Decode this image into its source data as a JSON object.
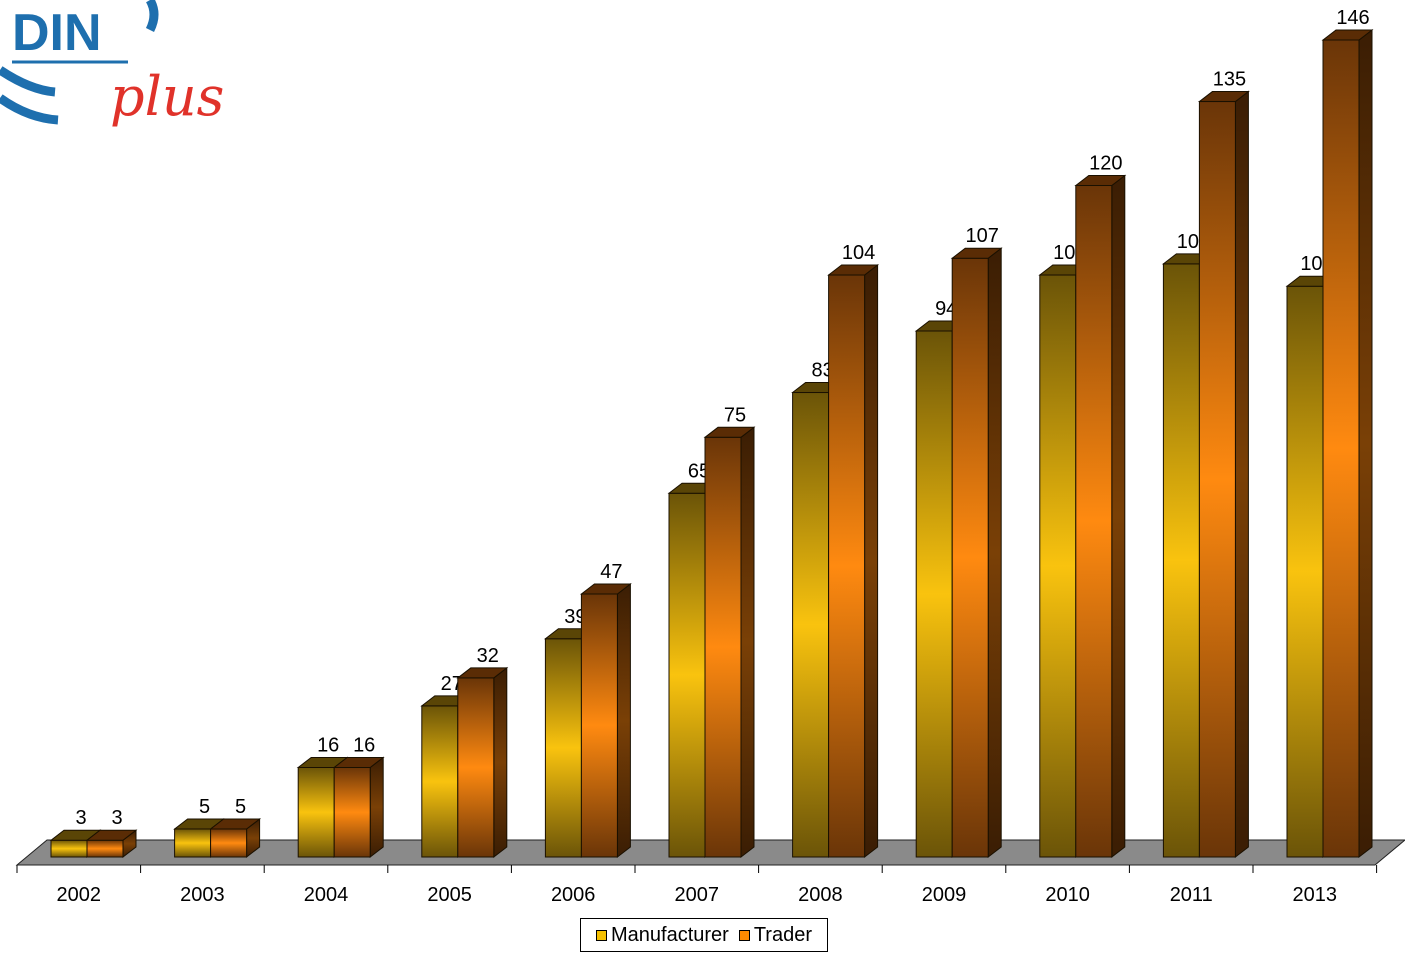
{
  "logo": {
    "text_main": "DIN",
    "text_script": "plus"
  },
  "chart_data": {
    "type": "bar",
    "categories": [
      "2002",
      "2003",
      "2004",
      "2005",
      "2006",
      "2007",
      "2008",
      "2009",
      "2010",
      "2011",
      "2013"
    ],
    "series": [
      {
        "name": "Manufacturer",
        "values": [
          3,
          5,
          16,
          27,
          39,
          65,
          83,
          94,
          104,
          106,
          102
        ],
        "color": "#f5c000"
      },
      {
        "name": "Trader",
        "values": [
          3,
          5,
          16,
          32,
          47,
          75,
          104,
          107,
          120,
          135,
          146
        ],
        "color": "#ff8a00"
      }
    ],
    "title": "",
    "xlabel": "",
    "ylabel": "",
    "ylim": [
      0,
      146
    ],
    "grid": false,
    "legend_position": "bottom",
    "style": "3d-column"
  },
  "legend": {
    "items": [
      {
        "label": "Manufacturer",
        "color": "#f5c000"
      },
      {
        "label": "Trader",
        "color": "#ff8a00"
      }
    ]
  }
}
